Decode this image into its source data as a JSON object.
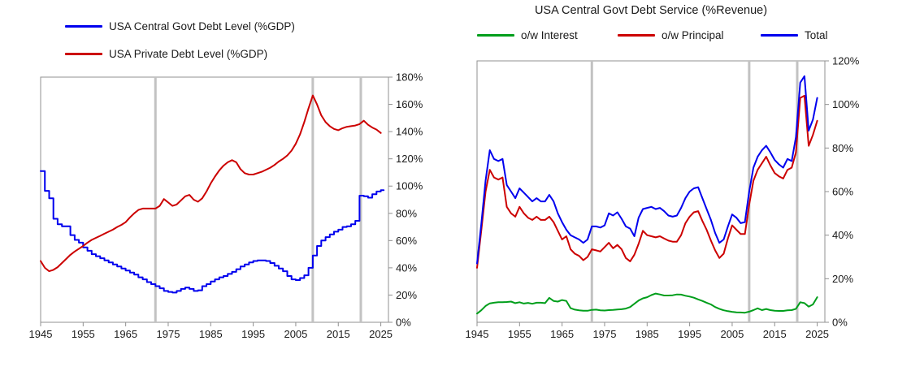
{
  "styles": {
    "background": "#FFFFFF",
    "axis_color": "#909090",
    "event_line_color": "#C2C2C2",
    "text_color": "#1A1A1A",
    "blue": "#0000EE",
    "red": "#CC0000",
    "green": "#009E1B"
  },
  "chart_data": [
    {
      "type": "line",
      "title": "",
      "legend_position": "top-left",
      "x_years": {
        "start": 1945,
        "end": 2025,
        "step": 1
      },
      "x_domain": [
        1945,
        2026.8
      ],
      "x_ticks": [
        1945,
        1955,
        1965,
        1975,
        1985,
        1995,
        2005,
        2015,
        2025
      ],
      "ylim": [
        0,
        180
      ],
      "y_ticks": [
        0,
        20,
        40,
        60,
        80,
        100,
        120,
        140,
        160,
        180
      ],
      "y_tick_suffix": "%",
      "y_axis_side": "right",
      "grid": false,
      "event_lines": [
        1972,
        2009,
        2020.3
      ],
      "series": [
        {
          "name": "USA Central Govt Debt Level (%GDP)",
          "color": "#0000EE",
          "style": "step",
          "values": [
            111,
            96.5,
            91,
            76,
            72,
            70.5,
            70.5,
            64,
            60.5,
            58.5,
            55,
            52.5,
            50,
            48.5,
            47,
            45.5,
            44,
            42.5,
            41,
            39.5,
            38,
            36.5,
            35,
            33,
            31.5,
            29.5,
            28,
            26.5,
            25,
            23,
            22.3,
            21.8,
            23,
            24.5,
            25.5,
            24.5,
            23,
            23.5,
            26.5,
            28,
            30,
            31.5,
            33,
            34,
            35.5,
            37,
            39,
            41,
            42.5,
            44,
            45,
            45.5,
            45.5,
            45,
            43.5,
            41.5,
            39.5,
            37.5,
            34,
            31.5,
            31,
            32.5,
            34.5,
            40,
            49,
            56,
            60,
            62.5,
            64.5,
            66.5,
            68,
            70,
            70.5,
            72,
            74.5,
            93,
            92.5,
            91.5,
            94,
            96,
            97
          ]
        },
        {
          "name": "USA Private Debt Level (%GDP)",
          "color": "#CC0000",
          "style": "line",
          "values": [
            45,
            40,
            37.5,
            38.5,
            40.5,
            43.5,
            46.5,
            49.5,
            52,
            54,
            56,
            58.5,
            60.5,
            62,
            63.5,
            65,
            66.5,
            68,
            70,
            71.5,
            73.5,
            77,
            80,
            82.5,
            83.5,
            83.5,
            83.5,
            83.5,
            85.5,
            90.5,
            88,
            85.5,
            86.5,
            89.5,
            92.5,
            93.5,
            90,
            88.5,
            91,
            96,
            102,
            107,
            111.5,
            115,
            117.5,
            119,
            117.5,
            112.5,
            109.5,
            108.5,
            108.5,
            109.5,
            110.5,
            112,
            113.5,
            115.5,
            118,
            120,
            122.5,
            126,
            131,
            138,
            147,
            157,
            166.5,
            160,
            152,
            147,
            144,
            142,
            141,
            142.5,
            143.5,
            144,
            144.5,
            145.5,
            148,
            145,
            143,
            141.5,
            139
          ]
        }
      ]
    },
    {
      "type": "line",
      "title": "USA Central Govt Debt Service (%Revenue)",
      "legend_position": "top",
      "x_years": {
        "start": 1945,
        "end": 2025,
        "step": 1
      },
      "x_domain": [
        1945,
        2026.8
      ],
      "x_ticks": [
        1945,
        1955,
        1965,
        1975,
        1985,
        1995,
        2005,
        2015,
        2025
      ],
      "ylim": [
        0,
        120
      ],
      "y_ticks": [
        0,
        20,
        40,
        60,
        80,
        100,
        120
      ],
      "y_tick_suffix": "%",
      "y_axis_side": "right",
      "grid": false,
      "event_lines": [
        1972,
        2009,
        2020.3
      ],
      "series": [
        {
          "name": "o/w Interest",
          "color": "#009E1B",
          "style": "line",
          "values": [
            4,
            5.5,
            7.5,
            8.7,
            9,
            9.2,
            9.2,
            9.3,
            9.5,
            8.8,
            9.2,
            8.6,
            8.9,
            8.5,
            9,
            9,
            8.8,
            11.2,
            9.8,
            9.5,
            10.2,
            9.8,
            6.5,
            5.8,
            5.5,
            5.3,
            5.3,
            5.7,
            5.8,
            5.5,
            5.4,
            5.6,
            5.7,
            5.9,
            6,
            6.3,
            7,
            8.5,
            10,
            11,
            11.5,
            12.5,
            13.2,
            12.8,
            12.3,
            12.3,
            12.4,
            12.8,
            12.7,
            12.2,
            11.8,
            11.3,
            10.5,
            9.8,
            9,
            8.2,
            7,
            6.2,
            5.5,
            5.1,
            4.8,
            4.6,
            4.5,
            4.4,
            4.9,
            5.6,
            6.4,
            5.6,
            6.1,
            5.6,
            5.3,
            5.2,
            5.2,
            5.5,
            5.6,
            6.2,
            9.2,
            8.8,
            7.2,
            8.2,
            11.5
          ]
        },
        {
          "name": "o/w Principal",
          "color": "#CC0000",
          "style": "line",
          "values": [
            25,
            42,
            60,
            70,
            66.5,
            65.5,
            66.5,
            53,
            50,
            48.5,
            53,
            50,
            48,
            47,
            48.5,
            47,
            47,
            48.5,
            46,
            42,
            38,
            39.5,
            33.5,
            31.5,
            30.5,
            28.5,
            30,
            33.5,
            33,
            32.5,
            34.5,
            36.5,
            34,
            35.5,
            33.5,
            29.5,
            28,
            31,
            36,
            42,
            40,
            39.5,
            39,
            39.5,
            38.5,
            37.5,
            37,
            37,
            40,
            45.5,
            48.5,
            50.5,
            51,
            46.5,
            42.5,
            37.5,
            33,
            29.5,
            31.5,
            38.5,
            44.5,
            42.5,
            40.5,
            40.5,
            54,
            65,
            70,
            73,
            76,
            72,
            68.5,
            67,
            66,
            70,
            71,
            78,
            103,
            104,
            81,
            86,
            92.5
          ]
        },
        {
          "name": "Total",
          "color": "#0000EE",
          "style": "line",
          "values": [
            27,
            45,
            65,
            79,
            75,
            74,
            75,
            63,
            60,
            57,
            61.5,
            59.5,
            57.5,
            55.5,
            57,
            55.5,
            55.5,
            58.5,
            55.5,
            50,
            46,
            42.5,
            40,
            39,
            38,
            36.5,
            38,
            44,
            44,
            43.5,
            44.5,
            50,
            49,
            50.5,
            47.5,
            44,
            43,
            39.5,
            48,
            52,
            52.5,
            53,
            52,
            52.5,
            51,
            49,
            48.5,
            49,
            52.5,
            57,
            60,
            61.5,
            62,
            57,
            52,
            47,
            41,
            36.5,
            38,
            44,
            49.5,
            48,
            45.5,
            46,
            60,
            71,
            76,
            79,
            81,
            78,
            74.5,
            72.5,
            71,
            75,
            74,
            85,
            110,
            113,
            88,
            93,
            103
          ]
        }
      ]
    }
  ]
}
